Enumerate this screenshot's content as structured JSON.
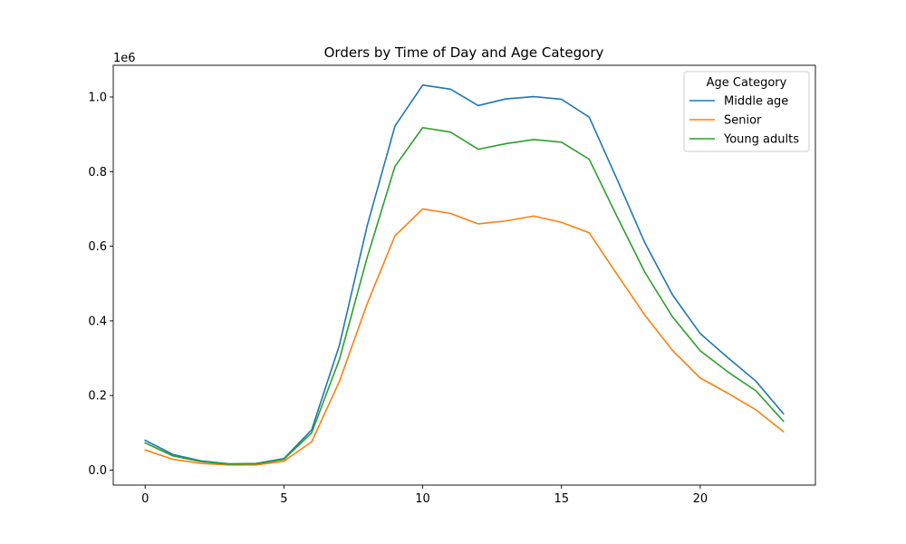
{
  "chart_data": {
    "type": "line",
    "title": "Orders by Time of Day and Age Category",
    "xlabel": "",
    "ylabel": "",
    "y_offset_label": "1e6",
    "xlim": [
      -1.15,
      24.15
    ],
    "ylim": [
      -40000,
      1085000
    ],
    "x_ticks": [
      0,
      5,
      10,
      15,
      20
    ],
    "y_ticks": [
      0,
      200000,
      400000,
      600000,
      800000,
      1000000
    ],
    "y_tick_labels": [
      "0.0",
      "0.2",
      "0.4",
      "0.6",
      "0.8",
      "1.0"
    ],
    "grid": false,
    "legend": {
      "title": "Age Category",
      "position": "top-right"
    },
    "x": [
      0,
      1,
      2,
      3,
      4,
      5,
      6,
      7,
      8,
      9,
      10,
      11,
      12,
      13,
      14,
      15,
      16,
      17,
      18,
      19,
      20,
      21,
      22,
      23
    ],
    "series": [
      {
        "name": "Middle age",
        "color": "#1f77b4",
        "values": [
          80000,
          42000,
          25000,
          17000,
          18000,
          31000,
          108000,
          335000,
          655000,
          922000,
          1032000,
          1021000,
          977000,
          995000,
          1001000,
          994000,
          946000,
          780000,
          610000,
          470000,
          366000,
          301000,
          239000,
          151000
        ]
      },
      {
        "name": "Senior",
        "color": "#ff7f0e",
        "values": [
          54000,
          29000,
          18000,
          14000,
          14000,
          24000,
          76000,
          238000,
          446000,
          628000,
          700000,
          688000,
          660000,
          668000,
          681000,
          664000,
          636000,
          525000,
          416000,
          321000,
          247000,
          206000,
          162000,
          103000
        ]
      },
      {
        "name": "Young adults",
        "color": "#2ca02c",
        "values": [
          73000,
          38000,
          23000,
          16000,
          17000,
          29000,
          100000,
          297000,
          570000,
          814000,
          918000,
          906000,
          860000,
          875000,
          886000,
          879000,
          833000,
          680000,
          531000,
          411000,
          320000,
          263000,
          213000,
          131000
        ]
      }
    ]
  }
}
